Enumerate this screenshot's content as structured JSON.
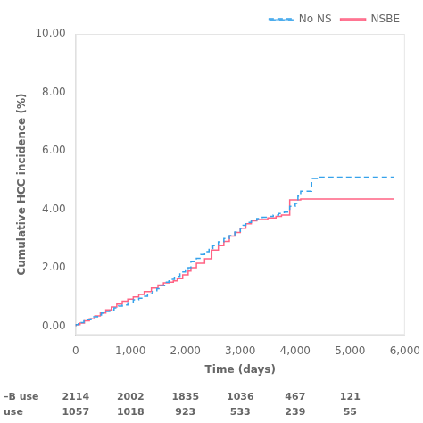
{
  "chart_data": {
    "type": "step",
    "x_label": "Time (days)",
    "y_label": "Cumulative HCC incidence (%)",
    "xlim": [
      0,
      6000
    ],
    "ylim": [
      -0.3,
      10.0
    ],
    "xticks": [
      0,
      {
        "value": 1000,
        "label": "1,000"
      },
      {
        "value": 2000,
        "label": "2,000"
      },
      {
        "value": 3000,
        "label": "3,000"
      },
      {
        "value": 4000,
        "label": "4,000"
      },
      {
        "value": 5000,
        "label": "5,000"
      },
      {
        "value": 6000,
        "label": "6,000"
      }
    ],
    "yticks": [
      {
        "value": 0.0,
        "label": "0.00"
      },
      {
        "value": 2.0,
        "label": "2.00"
      },
      {
        "value": 4.0,
        "label": "4.00"
      },
      {
        "value": 6.0,
        "label": "6.00"
      },
      {
        "value": 8.0,
        "label": "8.00"
      },
      {
        "value": 10.0,
        "label": "10.00"
      }
    ],
    "grid": false,
    "legend": "upper right",
    "series": [
      {
        "name": "No NS",
        "line_style": "dashed",
        "x": [
          0,
          50,
          100,
          150,
          200,
          280,
          330,
          400,
          470,
          550,
          620,
          700,
          780,
          850,
          950,
          1050,
          1150,
          1230,
          1310,
          1400,
          1480,
          1550,
          1620,
          1700,
          1800,
          1900,
          2000,
          2050,
          2100,
          2200,
          2280,
          2350,
          2430,
          2500,
          2600,
          2700,
          2800,
          2900,
          3000,
          3050,
          3100,
          3200,
          3300,
          3400,
          3500,
          3600,
          3700,
          3800,
          3900,
          4000,
          4050,
          4100,
          4300,
          4400,
          4700,
          5800
        ],
        "values": [
          0.0,
          0.05,
          0.08,
          0.12,
          0.18,
          0.22,
          0.28,
          0.32,
          0.38,
          0.45,
          0.5,
          0.55,
          0.62,
          0.68,
          0.72,
          0.8,
          0.9,
          0.95,
          1.02,
          1.1,
          1.18,
          1.28,
          1.38,
          1.5,
          1.6,
          1.7,
          1.85,
          1.92,
          2.0,
          2.2,
          2.32,
          2.45,
          2.55,
          2.65,
          2.75,
          2.88,
          3.0,
          3.1,
          3.22,
          3.35,
          3.45,
          3.55,
          3.62,
          3.68,
          3.72,
          3.75,
          3.8,
          3.85,
          3.9,
          4.1,
          4.2,
          4.45,
          4.62,
          5.05,
          5.1,
          5.1
        ]
      },
      {
        "name": "NSBE",
        "line_style": "solid",
        "x": [
          0,
          80,
          160,
          250,
          350,
          450,
          550,
          650,
          750,
          850,
          950,
          1050,
          1150,
          1250,
          1380,
          1500,
          1600,
          1700,
          1780,
          1850,
          1950,
          2050,
          2100,
          2200,
          2350,
          2480,
          2600,
          2700,
          2800,
          2900,
          3000,
          3100,
          3200,
          3300,
          3400,
          3500,
          3650,
          3750,
          3900,
          4000,
          4100,
          4500,
          5800
        ],
        "values": [
          0.0,
          0.05,
          0.1,
          0.18,
          0.25,
          0.35,
          0.45,
          0.55,
          0.65,
          0.75,
          0.85,
          0.92,
          1.0,
          1.08,
          1.18,
          1.3,
          1.4,
          1.48,
          1.5,
          1.55,
          1.62,
          1.75,
          1.88,
          2.0,
          2.15,
          2.3,
          2.6,
          2.75,
          2.9,
          3.08,
          3.2,
          3.35,
          3.5,
          3.6,
          3.65,
          3.65,
          3.7,
          3.75,
          3.8,
          4.32,
          4.32,
          4.35,
          4.35
        ]
      }
    ],
    "table": {
      "x": [
        0,
        1000,
        2000,
        3000,
        4000,
        5000
      ],
      "rows": [
        {
          "label": "–B use",
          "values": [
            2114,
            2002,
            1835,
            1036,
            467,
            121
          ]
        },
        {
          "label": "use",
          "values": [
            1057,
            1018,
            923,
            533,
            239,
            55
          ]
        }
      ]
    }
  }
}
